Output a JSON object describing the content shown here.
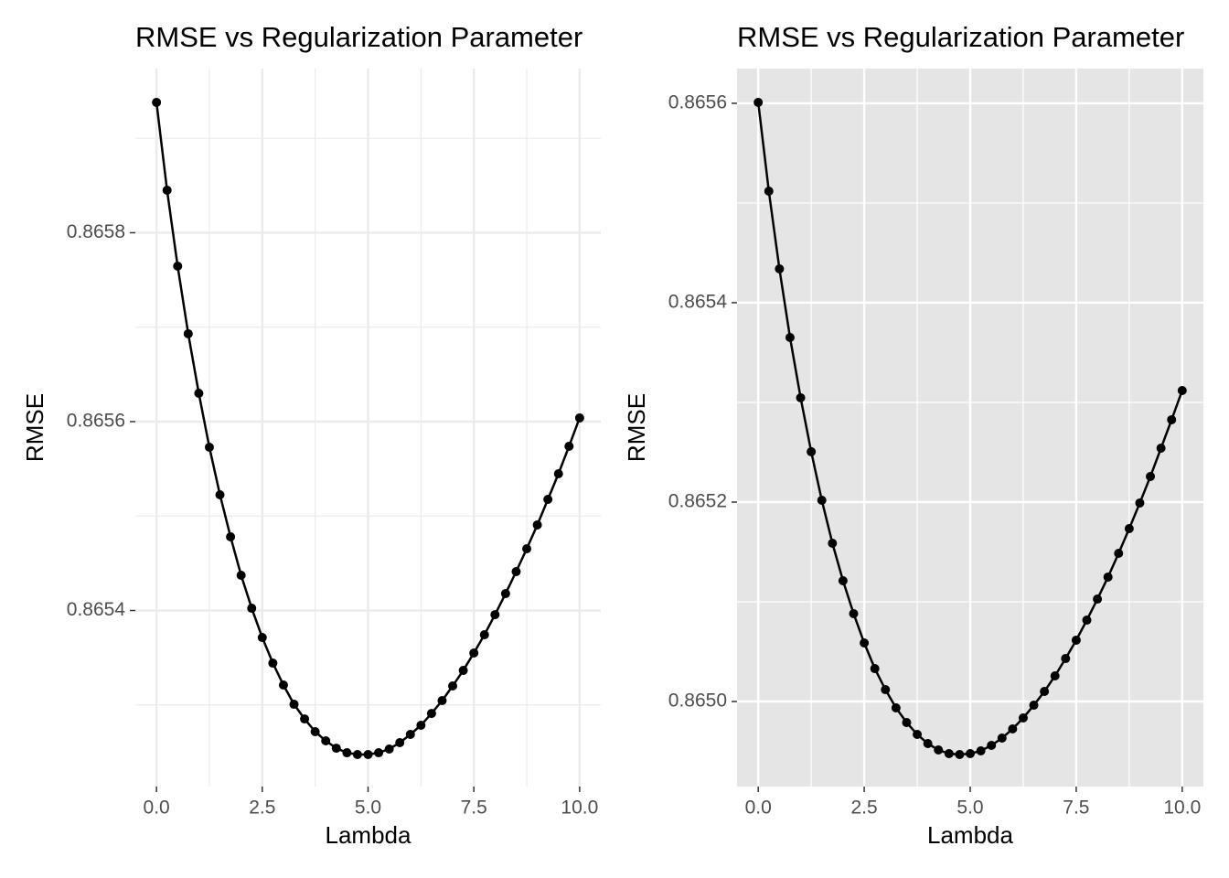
{
  "chart_data": [
    {
      "type": "line",
      "title": "RMSE vs Regularization Parameter",
      "x_label": "Lambda",
      "y_label": "RMSE",
      "panel_background": "#ffffff",
      "grid_color": "#ebebeb",
      "grid": true,
      "minor_grid": true,
      "xlim": [
        -0.5,
        10.5
      ],
      "ylim": [
        0.8652136,
        0.8659738
      ],
      "xticks": [
        {
          "value": 0,
          "label": "0.0"
        },
        2.5,
        {
          "value": 5,
          "label": "5.0"
        },
        7.5,
        {
          "value": 10,
          "label": "10.0"
        }
      ],
      "yticks": [
        0.8654,
        0.8656,
        0.8658
      ],
      "x": [
        0,
        0.25,
        0.5,
        0.75,
        1,
        1.25,
        1.5,
        1.75,
        2,
        2.25,
        2.5,
        2.75,
        3,
        3.25,
        3.5,
        3.75,
        4,
        4.25,
        4.5,
        4.75,
        5,
        5.25,
        5.5,
        5.75,
        6,
        6.25,
        6.5,
        6.75,
        7,
        7.25,
        7.5,
        7.75,
        8,
        8.25,
        8.5,
        8.75,
        9,
        9.25,
        9.5,
        9.75,
        10
      ],
      "series": [
        {
          "color": "#000000",
          "values": [
            0.865938,
            0.865845,
            0.8657646,
            0.865693,
            0.86563,
            0.8655729,
            0.8655225,
            0.865478,
            0.8654373,
            0.8654024,
            0.8653714,
            0.8653443,
            0.8653211,
            0.8653007,
            0.8652852,
            0.8652717,
            0.865262,
            0.8652542,
            0.8652494,
            0.8652475,
            0.8652475,
            0.8652494,
            0.8652533,
            0.8652601,
            0.8652688,
            0.8652785,
            0.865291,
            0.8653046,
            0.8653201,
            0.8653366,
            0.865355,
            0.8653743,
            0.8653956,
            0.8654179,
            0.8654412,
            0.8654654,
            0.8654906,
            0.8655177,
            0.8655448,
            0.8655739,
            0.8656039
          ]
        }
      ]
    },
    {
      "type": "line",
      "title": "RMSE vs Regularization Parameter",
      "x_label": "Lambda",
      "y_label": "RMSE",
      "panel_background": "#e5e5e5",
      "grid_color": "#ffffff",
      "grid": true,
      "minor_grid": true,
      "xlim": [
        -0.5,
        10.5
      ],
      "ylim": [
        0.8649147,
        0.8656348
      ],
      "xticks": [
        {
          "value": 0,
          "label": "0.0"
        },
        2.5,
        {
          "value": 5,
          "label": "5.0"
        },
        7.5,
        {
          "value": 10,
          "label": "10.0"
        }
      ],
      "yticks": [
        {
          "value": 0.865,
          "label": "0.8650"
        },
        0.8652,
        0.8654,
        0.8656
      ],
      "x": [
        0,
        0.25,
        0.5,
        0.75,
        1,
        1.25,
        1.5,
        1.75,
        2,
        2.25,
        2.5,
        2.75,
        3,
        3.25,
        3.5,
        3.75,
        4,
        4.25,
        4.5,
        4.75,
        5,
        5.25,
        5.5,
        5.75,
        6,
        6.25,
        6.5,
        6.75,
        7,
        7.25,
        7.5,
        7.75,
        8,
        8.25,
        8.5,
        8.75,
        9,
        9.25,
        9.5,
        9.75,
        10
      ],
      "series": [
        {
          "color": "#000000",
          "values": [
            0.8656009,
            0.8655119,
            0.8654339,
            0.8653651,
            0.8653046,
            0.8652505,
            0.8652018,
            0.8651587,
            0.8651211,
            0.8650881,
            0.8650587,
            0.865033,
            0.8650119,
            0.8649936,
            0.8649789,
            0.864967,
            0.8649578,
            0.8649514,
            0.8649477,
            0.8649468,
            0.8649477,
            0.8649505,
            0.864956,
            0.8649633,
            0.8649725,
            0.8649835,
            0.8649963,
            0.8650101,
            0.8650257,
            0.8650431,
            0.8650615,
            0.8650816,
            0.8651027,
            0.8651248,
            0.8651486,
            0.8651734,
            0.8651991,
            0.8652257,
            0.8652541,
            0.8652826,
            0.8653119
          ]
        }
      ]
    }
  ]
}
